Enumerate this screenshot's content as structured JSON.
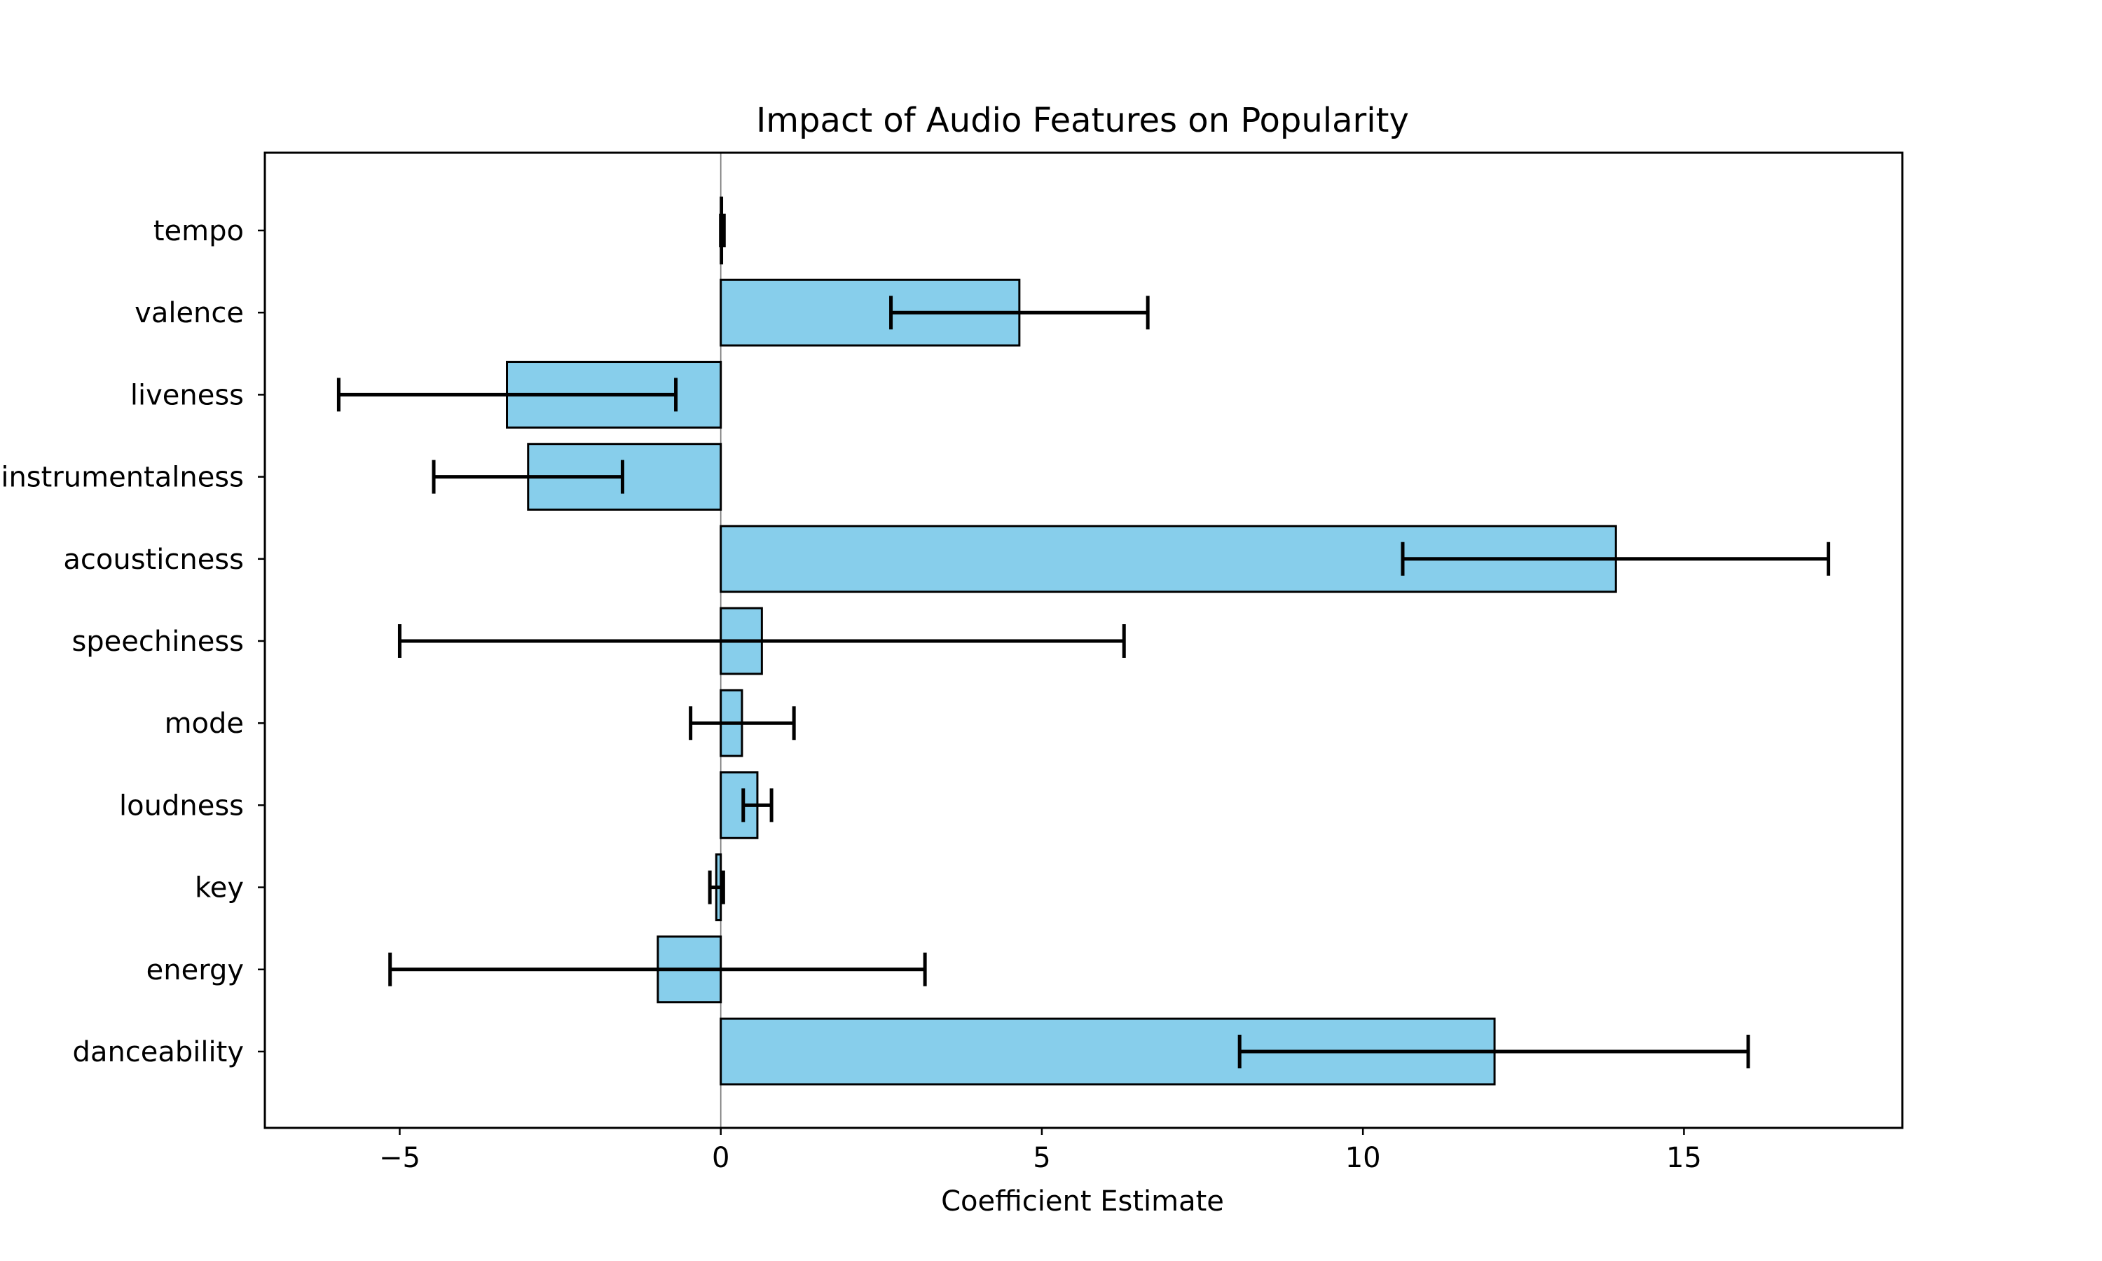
{
  "chart_data": {
    "type": "bar",
    "orientation": "horizontal",
    "title": "Impact of Audio Features on Popularity",
    "xlabel": "Coefficient Estimate",
    "ylabel": "",
    "xlim": [
      -7.1,
      18.4
    ],
    "xticks": [
      -5,
      0,
      5,
      10,
      15
    ],
    "xtick_labels": [
      "−5",
      "0",
      "5",
      "10",
      "15"
    ],
    "grid": false,
    "categories": [
      "danceability",
      "energy",
      "key",
      "loudness",
      "mode",
      "speechiness",
      "acousticness",
      "instrumentalness",
      "liveness",
      "valence",
      "tempo"
    ],
    "values": [
      12.05,
      -0.98,
      -0.07,
      0.57,
      0.33,
      0.64,
      13.94,
      -3.0,
      -3.33,
      4.65,
      0.02
    ],
    "ci_low": [
      8.08,
      -5.15,
      -0.17,
      0.35,
      -0.47,
      -5.0,
      10.62,
      -4.47,
      -5.95,
      2.65,
      0.0
    ],
    "ci_high": [
      16.0,
      3.18,
      0.04,
      0.79,
      1.14,
      6.28,
      17.25,
      -1.53,
      -0.7,
      6.65,
      0.05
    ],
    "colors": {
      "bar": "#87ceeb",
      "edge": "#000000",
      "zero_line": "#808080"
    }
  }
}
